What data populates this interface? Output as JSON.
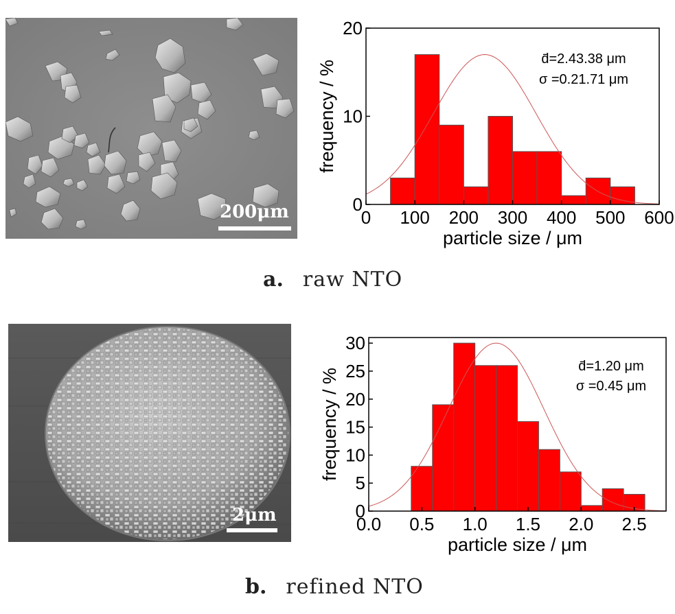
{
  "panel_a": {
    "caption_letter": "a.",
    "caption_text": "raw NTO",
    "scale_label": "200μm",
    "annotation_d": "d̄=2.43.38 μm",
    "annotation_sigma": "σ =0.21.71 μm"
  },
  "panel_b": {
    "caption_letter": "b.",
    "caption_text": "refined NTO",
    "scale_label": "2μm",
    "annotation_d": "d̄=1.20 μm",
    "annotation_sigma": "σ =0.45 μm"
  },
  "colors": {
    "bar": "#ff0000",
    "curve": "#cc5555",
    "axis": "#000000"
  },
  "chart_data": [
    {
      "type": "bar",
      "xlabel": "particle size / μm",
      "ylabel": "frequency / %",
      "xlim": [
        0,
        600
      ],
      "ylim": [
        0,
        20
      ],
      "xticks": [
        0,
        100,
        200,
        300,
        400,
        500,
        600
      ],
      "yticks": [
        0,
        10,
        20
      ],
      "bin_width": 50,
      "bin_starts": [
        50,
        100,
        150,
        200,
        250,
        300,
        350,
        400,
        450,
        500
      ],
      "values": [
        3,
        17,
        9,
        2,
        10,
        6,
        6,
        1,
        3,
        2
      ],
      "fit_curve": {
        "type": "gaussian",
        "mean": 243,
        "sd": 105,
        "peak": 17
      },
      "grid": false
    },
    {
      "type": "bar",
      "xlabel": "particle size / μm",
      "ylabel": "frequency / %",
      "xlim": [
        0,
        2.8
      ],
      "ylim": [
        0,
        31
      ],
      "xticks": [
        0.0,
        0.5,
        1.0,
        1.5,
        2.0,
        2.5
      ],
      "yticks": [
        0,
        5,
        10,
        15,
        20,
        25,
        30
      ],
      "bin_width": 0.2,
      "bin_starts": [
        0.4,
        0.6,
        0.8,
        1.0,
        1.2,
        1.4,
        1.6,
        1.8,
        2.0,
        2.2,
        2.4
      ],
      "values": [
        8,
        19,
        30,
        26,
        26,
        16,
        11,
        7,
        1,
        4,
        3
      ],
      "fit_curve": {
        "type": "gaussian",
        "mean": 1.2,
        "sd": 0.45,
        "peak": 30
      },
      "grid": false
    }
  ]
}
